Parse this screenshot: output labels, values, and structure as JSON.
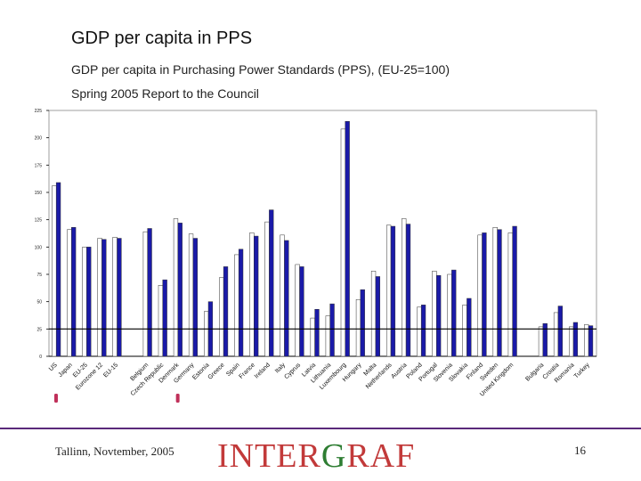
{
  "slide": {
    "title": "GDP per capita in PPS",
    "subtitle1": "GDP per capita in Purchasing Power Standards (PPS), (EU-25=100)",
    "subtitle2": "Spring 2005 Report to the Council"
  },
  "footer": {
    "location_date": "Tallinn, Novtember, 2005",
    "logo": "INTERGRAF",
    "logo_colors": [
      "#c23a3a",
      "#2e7d32"
    ],
    "page_number": "16"
  },
  "chart_data": {
    "type": "bar",
    "title": "",
    "xlabel": "",
    "ylabel": "",
    "ylim": [
      0,
      225
    ],
    "yticks": [
      0,
      25,
      50,
      75,
      100,
      125,
      150,
      175,
      200,
      225
    ],
    "grid": false,
    "legend": "none",
    "reference_line": 25,
    "colors": {
      "series_a": "#ffffff",
      "series_b": "#1a1aa8",
      "reference_line": "#000000",
      "marker": "#c0305a"
    },
    "categories": [
      "US",
      "Japan",
      "EU-25",
      "Eurozone 12",
      "EU-15",
      "",
      "Belgium",
      "Czech Republic",
      "Denmark",
      "Germany",
      "Estonia",
      "Greece",
      "Spain",
      "France",
      "Ireland",
      "Italy",
      "Cyprus",
      "Latvia",
      "Lithuania",
      "Luxembourg",
      "Hungary",
      "Malta",
      "Netherlands",
      "Austria",
      "Poland",
      "Portugal",
      "Slovenia",
      "Slovakia",
      "Finland",
      "Sweden",
      "United Kingdom",
      "",
      "Bulgaria",
      "Croatia",
      "Romania",
      "Turkey"
    ],
    "series": [
      {
        "values": [
          156,
          116,
          100,
          108,
          109,
          null,
          114,
          65,
          126,
          112,
          41,
          72,
          93,
          113,
          123,
          111,
          84,
          35,
          37,
          208,
          52,
          78,
          120,
          126,
          45,
          78,
          75,
          47,
          111,
          118,
          113,
          null,
          27,
          40,
          27,
          29
        ]
      },
      {
        "values": [
          159,
          118,
          100,
          107,
          108,
          null,
          117,
          70,
          122,
          108,
          50,
          82,
          98,
          110,
          134,
          106,
          82,
          43,
          48,
          215,
          61,
          73,
          119,
          121,
          47,
          74,
          79,
          53,
          113,
          116,
          119,
          null,
          30,
          46,
          31,
          28
        ]
      }
    ],
    "markers": [
      "US",
      "Denmark"
    ]
  }
}
